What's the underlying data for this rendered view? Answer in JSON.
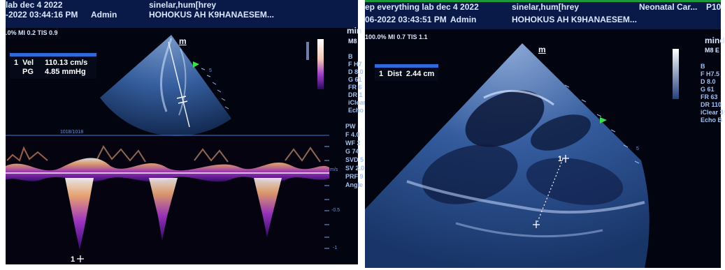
{
  "left_panel": {
    "header": {
      "lab_title": "lab dec 4 2022",
      "patient_code": "sinelar,hum[hrey",
      "datetime": "-2022 03:44:16 PM",
      "user": "Admin",
      "facility": "HOHOKUS AH K9HANAESEM..."
    },
    "power_line": ".0% MI 0.2 TIS 0.9",
    "brand": "min",
    "probe": "M8",
    "measurement": {
      "index": "1",
      "rows": [
        {
          "label": "Vel",
          "value": "110.13 cm/s"
        },
        {
          "label": "PG",
          "value": "4.85 mmHg"
        }
      ]
    },
    "sector_label": "m",
    "depth_tick_label": "5",
    "bmode_params": [
      "B",
      "F H7",
      "D 8.0",
      "G 61",
      "FR 6",
      "DR 1",
      "iClear",
      "Echo"
    ],
    "pw_params": [
      "PW",
      "F 4.0",
      "WF 2",
      "G 74",
      "SVD 5",
      "SV 2.0",
      "PRF 9",
      "Angle"
    ],
    "doppler_header": "1018/1018",
    "scale_unit": "m/s",
    "scale_ticks": [
      "-0.5",
      "-1"
    ],
    "caliper_label": "1"
  },
  "right_panel": {
    "header": {
      "lab_title": "ep everything lab dec 4 2022",
      "patient_code": "sinelar,hum[hrey",
      "department": "Neonatal Car...",
      "probe_id": "P10",
      "datetime": "06-2022 03:43:51 PM",
      "user": "Admin",
      "facility": "HOHOKUS AH K9HANAESEM..."
    },
    "power_line": "100.0% MI 0.7 TIS 1.1",
    "brand": "mind",
    "probe": "M8 E",
    "measurement": {
      "index": "1",
      "label": "Dist",
      "value": "2.44 cm"
    },
    "sector_label": "m",
    "depth_tick_label": "5",
    "bmode_params": [
      "B",
      "F H7.5",
      "D 8.0",
      "G 61",
      "FR 63",
      "DR 110",
      "iClear 3",
      "Echo B"
    ],
    "caliper_label": "1"
  }
}
